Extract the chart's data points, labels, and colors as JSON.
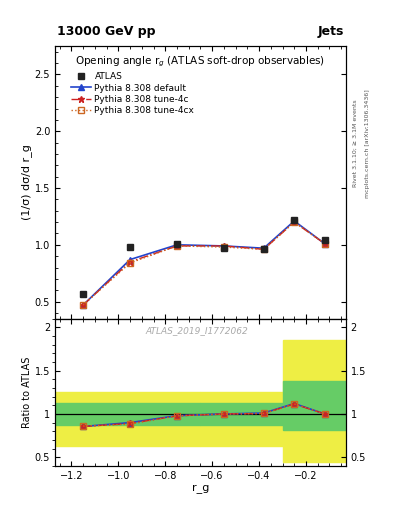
{
  "title_top": "13000 GeV pp",
  "title_right": "Jets",
  "plot_title": "Opening angle r$_g$ (ATLAS soft-drop observables)",
  "ylabel_main": "(1/σ) dσ/d r_g",
  "ylabel_ratio": "Ratio to ATLAS",
  "xlabel": "r_g",
  "watermark": "ATLAS_2019_I1772062",
  "right_label_top": "Rivet 3.1.10; ≥ 3.1M events",
  "right_label_bot": "mcplots.cern.ch [arXiv:1306.3436]",
  "x": [
    -1.15,
    -0.95,
    -0.75,
    -0.55,
    -0.38,
    -0.25,
    -0.12
  ],
  "atlas_y": [
    0.57,
    0.98,
    1.01,
    0.97,
    0.96,
    1.22,
    1.04
  ],
  "pythia_default_y": [
    0.47,
    0.87,
    1.0,
    0.99,
    0.97,
    1.21,
    1.01
  ],
  "pythia_4c_y": [
    0.47,
    0.85,
    0.99,
    0.99,
    0.96,
    1.2,
    1.01
  ],
  "pythia_4cx_y": [
    0.47,
    0.84,
    0.99,
    0.98,
    0.96,
    1.2,
    1.01
  ],
  "ratio_default_y": [
    0.855,
    0.9,
    0.98,
    1.0,
    1.01,
    1.12,
    1.0
  ],
  "ratio_4c_y": [
    0.855,
    0.89,
    0.978,
    1.0,
    1.005,
    1.115,
    1.0
  ],
  "ratio_4cx_y": [
    0.86,
    0.882,
    0.978,
    0.998,
    1.005,
    1.115,
    1.0
  ],
  "ylim_main": [
    0.35,
    2.75
  ],
  "ylim_ratio": [
    0.4,
    2.1
  ],
  "xlim": [
    -1.27,
    -0.03
  ],
  "band1_xlo": -1.27,
  "band1_xhi": -0.65,
  "band1_ylo_yellow": 0.625,
  "band1_yhi_yellow": 1.25,
  "band1_ylo_green": 0.875,
  "band1_yhi_green": 1.125,
  "band2_xlo": -0.65,
  "band2_xhi": -0.3,
  "band2_ylo_yellow": 0.625,
  "band2_yhi_yellow": 1.25,
  "band2_ylo_green": 0.875,
  "band2_yhi_green": 1.125,
  "band3_xlo": -0.3,
  "band3_xhi": -0.03,
  "band3_ylo_yellow": 0.45,
  "band3_yhi_yellow": 1.85,
  "band3_ylo_green": 0.82,
  "band3_yhi_green": 1.38,
  "color_atlas": "#222222",
  "color_default": "#2244cc",
  "color_4c": "#cc2222",
  "color_4cx": "#cc6622",
  "color_green": "#66cc66",
  "color_yellow": "#eeee44",
  "legend_labels": [
    "ATLAS",
    "Pythia 8.308 default",
    "Pythia 8.308 tune-4c",
    "Pythia 8.308 tune-4cx"
  ],
  "yticks_main": [
    0.5,
    1.0,
    1.5,
    2.0,
    2.5
  ],
  "yticks_ratio": [
    0.5,
    1.0,
    1.5,
    2.0
  ]
}
